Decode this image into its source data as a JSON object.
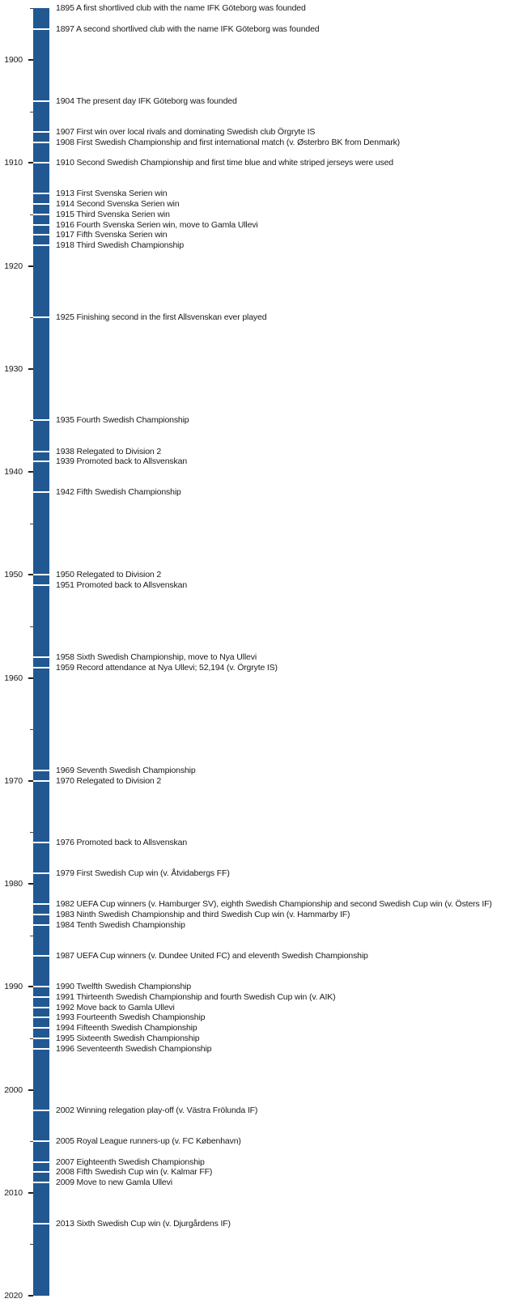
{
  "chart_data": {
    "type": "timeline",
    "orientation": "vertical",
    "axis": {
      "unit": "year",
      "range": [
        1895,
        2020
      ],
      "major_ticks": [
        1900,
        1910,
        1920,
        1930,
        1940,
        1950,
        1960,
        1970,
        1980,
        1990,
        2000,
        2010,
        2020
      ],
      "minor_tick_step": 5
    },
    "events": [
      {
        "year": 1895,
        "text": "A first shortlived club with the name IFK Göteborg was founded"
      },
      {
        "year": 1897,
        "text": "A second shortlived club with the name IFK Göteborg was founded"
      },
      {
        "year": 1904,
        "text": "The present day IFK Göteborg was founded"
      },
      {
        "year": 1907,
        "text": "First win over local rivals and dominating Swedish club Örgryte IS"
      },
      {
        "year": 1908,
        "text": "First Swedish Championship and first international match (v. Østerbro BK from Denmark)"
      },
      {
        "year": 1910,
        "text": "Second Swedish Championship and first time blue and white striped jerseys were used"
      },
      {
        "year": 1913,
        "text": "First Svenska Serien win"
      },
      {
        "year": 1914,
        "text": "Second Svenska Serien win"
      },
      {
        "year": 1915,
        "text": "Third Svenska Serien win"
      },
      {
        "year": 1916,
        "text": "Fourth Svenska Serien win, move to Gamla Ullevi"
      },
      {
        "year": 1917,
        "text": "Fifth Svenska Serien win"
      },
      {
        "year": 1918,
        "text": "Third Swedish Championship"
      },
      {
        "year": 1925,
        "text": "Finishing second in the first Allsvenskan ever played"
      },
      {
        "year": 1935,
        "text": "Fourth Swedish Championship"
      },
      {
        "year": 1938,
        "text": "Relegated to Division 2"
      },
      {
        "year": 1939,
        "text": "Promoted back to Allsvenskan"
      },
      {
        "year": 1942,
        "text": "Fifth Swedish Championship"
      },
      {
        "year": 1950,
        "text": "Relegated to Division 2"
      },
      {
        "year": 1951,
        "text": "Promoted back to Allsvenskan"
      },
      {
        "year": 1958,
        "text": "Sixth Swedish Championship, move to Nya Ullevi"
      },
      {
        "year": 1959,
        "text": "Record attendance at Nya Ullevi; 52,194 (v. Örgryte IS)"
      },
      {
        "year": 1969,
        "text": "Seventh Swedish Championship"
      },
      {
        "year": 1970,
        "text": "Relegated to Division 2"
      },
      {
        "year": 1976,
        "text": "Promoted back to Allsvenskan"
      },
      {
        "year": 1979,
        "text": "First Swedish Cup win (v. Åtvidabergs FF)"
      },
      {
        "year": 1982,
        "text": "UEFA Cup winners (v. Hamburger SV), eighth Swedish Championship and second Swedish Cup win (v. Östers IF)"
      },
      {
        "year": 1983,
        "text": "Ninth Swedish Championship and third Swedish Cup win (v. Hammarby IF)"
      },
      {
        "year": 1984,
        "text": "Tenth Swedish Championship"
      },
      {
        "year": 1987,
        "text": "UEFA Cup winners (v. Dundee United FC) and eleventh Swedish Championship"
      },
      {
        "year": 1990,
        "text": "Twelfth Swedish Championship"
      },
      {
        "year": 1991,
        "text": "Thirteenth Swedish Championship and fourth Swedish Cup win (v. AIK)"
      },
      {
        "year": 1992,
        "text": "Move back to Gamla Ullevi"
      },
      {
        "year": 1993,
        "text": "Fourteenth Swedish Championship"
      },
      {
        "year": 1994,
        "text": "Fifteenth Swedish Championship"
      },
      {
        "year": 1995,
        "text": "Sixteenth Swedish Championship"
      },
      {
        "year": 1996,
        "text": "Seventeenth Swedish Championship"
      },
      {
        "year": 2002,
        "text": "Winning relegation play-off (v. Västra Frölunda IF)"
      },
      {
        "year": 2005,
        "text": "Royal League runners-up (v. FC København)"
      },
      {
        "year": 2007,
        "text": "Eighteenth Swedish Championship"
      },
      {
        "year": 2008,
        "text": "Fifth Swedish Cup win (v. Kalmar FF)"
      },
      {
        "year": 2009,
        "text": "Move to new Gamla Ullevi"
      },
      {
        "year": 2013,
        "text": "Sixth Swedish Cup win (v. Djurgårdens IF)"
      }
    ],
    "colors": {
      "bar": "#215892",
      "event_line": "#ffffff",
      "text": "#1a1a1a",
      "major_tick": "#222222",
      "minor_tick": "#444444"
    }
  }
}
